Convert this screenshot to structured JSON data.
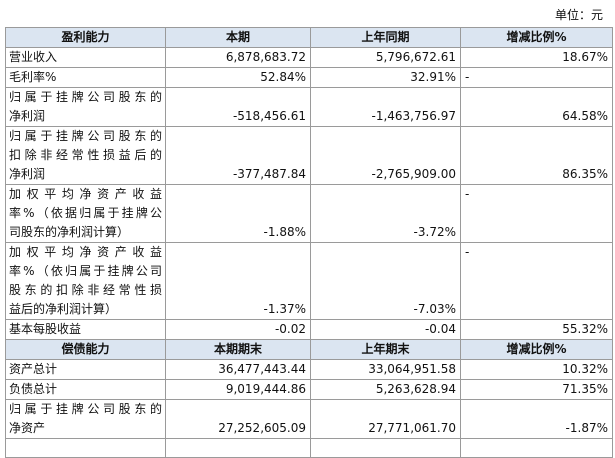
{
  "unit": "单位：元",
  "table": {
    "header": [
      "盈利能力",
      "本期",
      "上年同期",
      "增减比例%"
    ],
    "rows": [
      [
        [
          "营业收入"
        ],
        "6,878,683.72",
        "5,796,672.61",
        "18.67%"
      ],
      [
        [
          "毛利率%"
        ],
        "52.84%",
        "32.91%",
        "-"
      ],
      [
        [
          "归属于挂牌公司股东的",
          "净利润"
        ],
        "-518,456.61",
        "-1,463,756.97",
        "64.58%"
      ],
      [
        [
          "归属于挂牌公司股东的",
          "扣除非经常性损益后的",
          "净利润"
        ],
        "-377,487.84",
        "-2,765,909.00",
        "86.35%"
      ],
      [
        [
          "加权平均净资产收益",
          "率%（依据归属于挂牌公",
          "司股东的净利润计算）"
        ],
        "-1.88%",
        "-3.72%",
        "-"
      ],
      [
        [
          "加权平均净资产收益",
          "率%（依归属于挂牌公司",
          "股东的扣除非经常性损",
          "益后的净利润计算）"
        ],
        "-1.37%",
        "-7.03%",
        "-"
      ],
      [
        [
          "基本每股收益"
        ],
        "-0.02",
        "-0.04",
        "55.32%"
      ]
    ]
  },
  "table2": {
    "header": [
      "偿债能力",
      "本期期末",
      "上年期末",
      "增减比例%"
    ],
    "rows": [
      [
        [
          "资产总计"
        ],
        "36,477,443.44",
        "33,064,951.58",
        "10.32%"
      ],
      [
        [
          "负债总计"
        ],
        "9,019,444.86",
        "5,263,628.94",
        "71.35%"
      ],
      [
        [
          "归属于挂牌公司股东的",
          "净资产"
        ],
        "27,252,605.09",
        "27,771,061.70",
        "-1.87%"
      ]
    ]
  }
}
